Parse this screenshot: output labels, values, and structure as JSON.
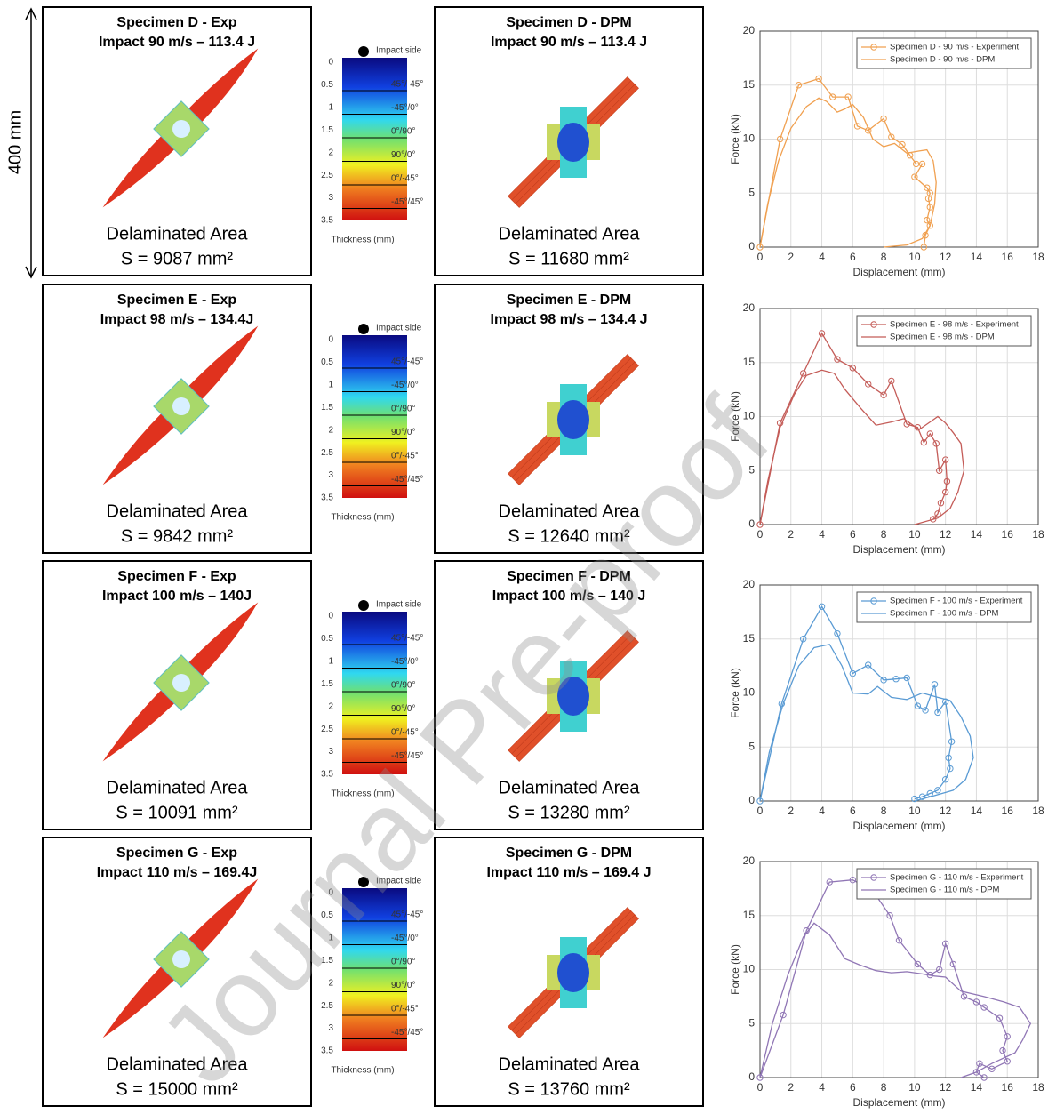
{
  "scale_label": "400 mm",
  "watermark": "Journal Pre-proof",
  "colorbar": {
    "impact_label": "Impact side",
    "ticks": [
      "0",
      "0.5",
      "1",
      "1.5",
      "2",
      "2.5",
      "3",
      "3.5"
    ],
    "plies": [
      "45°/-45°",
      "-45°/0°",
      "0°/90°",
      "90°/0°",
      "0°/-45°",
      "-45°/45°"
    ],
    "label": "Thickness (mm)"
  },
  "panels": [
    {
      "exp": {
        "title": "Specimen D - Exp",
        "subtitle": "Impact 90 m/s – 113.4 J",
        "area_label": "Delaminated Area",
        "area": "S = 9087 mm²"
      },
      "dpm": {
        "title": "Specimen D - DPM",
        "subtitle": "Impact 90 m/s – 113.4 J",
        "area_label": "Delaminated Area",
        "area": "S = 11680 mm²"
      }
    },
    {
      "exp": {
        "title": "Specimen E - Exp",
        "subtitle": "Impact 98 m/s – 134.4J",
        "area_label": "Delaminated Area",
        "area": "S = 9842 mm²"
      },
      "dpm": {
        "title": "Specimen E - DPM",
        "subtitle": "Impact 98 m/s – 134.4 J",
        "area_label": "Delaminated Area",
        "area": "S = 12640 mm²"
      }
    },
    {
      "exp": {
        "title": "Specimen F - Exp",
        "subtitle": "Impact 100 m/s – 140J",
        "area_label": "Delaminated Area",
        "area": "S = 10091 mm²"
      },
      "dpm": {
        "title": "Specimen F - DPM",
        "subtitle": "Impact 100 m/s – 140 J",
        "area_label": "Delaminated Area",
        "area": "S = 13280 mm²"
      }
    },
    {
      "exp": {
        "title": "Specimen G - Exp",
        "subtitle": "Impact 110 m/s – 169.4J",
        "area_label": "Delaminated Area",
        "area": "S = 15000 mm²"
      },
      "dpm": {
        "title": "Specimen G - DPM",
        "subtitle": "Impact 110 m/s – 169.4 J",
        "area_label": "Delaminated Area",
        "area": "S = 13760 mm²"
      }
    }
  ],
  "chart_data": [
    {
      "type": "line",
      "x_label": "Displacement (mm)",
      "y_label": "Force (kN)",
      "xlim": [
        0,
        18
      ],
      "xticks": [
        0,
        2,
        4,
        6,
        8,
        10,
        12,
        14,
        16,
        18
      ],
      "ylim": [
        0,
        20
      ],
      "yticks": [
        0,
        5,
        10,
        15,
        20
      ],
      "grid": true,
      "legend": "upper right",
      "series": [
        {
          "name": "Specimen D - 90 m/s - Experiment",
          "color": "#f0a050",
          "marker": "o",
          "x": [
            0,
            1.3,
            2.5,
            3.8,
            4.7,
            5.7,
            6.3,
            7,
            8,
            8.5,
            9.2,
            9.7,
            10.1,
            10.5,
            10,
            10.8,
            11,
            10.9,
            11,
            10.8,
            11,
            10.7,
            10.6
          ],
          "values": [
            0,
            10,
            15,
            15.6,
            13.9,
            13.9,
            11.2,
            10.8,
            11.9,
            10.2,
            9.5,
            8.5,
            7.7,
            7.7,
            6.5,
            5.5,
            5,
            4.5,
            3.7,
            2.5,
            2,
            1.1,
            0
          ]
        },
        {
          "name": "Specimen D - 90 m/s - DPM",
          "color": "#f0a050",
          "x": [
            0,
            0.5,
            1.2,
            2,
            3,
            3.8,
            4.3,
            5,
            5.5,
            6,
            6.7,
            7.3,
            8,
            8.7,
            9.5,
            10.3,
            10.8,
            11.2,
            11.4,
            11.3,
            11,
            10.5,
            9.5,
            8
          ],
          "values": [
            0,
            4,
            8,
            11,
            13,
            13.8,
            13.5,
            12.5,
            12.8,
            13.2,
            12,
            10,
            9.3,
            9.6,
            8.7,
            8.9,
            9,
            8,
            6,
            4,
            2,
            0.8,
            0.2,
            0
          ]
        }
      ]
    },
    {
      "type": "line",
      "x_label": "Displacement (mm)",
      "y_label": "Force (kN)",
      "xlim": [
        0,
        18
      ],
      "xticks": [
        0,
        2,
        4,
        6,
        8,
        10,
        12,
        14,
        16,
        18
      ],
      "ylim": [
        0,
        20
      ],
      "yticks": [
        0,
        5,
        10,
        15,
        20
      ],
      "grid": true,
      "legend": "upper right",
      "series": [
        {
          "name": "Specimen E - 98 m/s - Experiment",
          "color": "#c45c58",
          "marker": "o",
          "x": [
            0,
            1.3,
            2.8,
            4,
            5,
            6,
            7,
            8,
            8.5,
            9.5,
            10.2,
            10.6,
            11,
            11.4,
            11.6,
            12,
            12.1,
            12,
            11.7,
            11.5,
            11.2
          ],
          "values": [
            0,
            9.4,
            14,
            17.7,
            15.3,
            14.5,
            13,
            12,
            13.3,
            9.3,
            9,
            7.6,
            8.4,
            7.5,
            5,
            6,
            4,
            3,
            2,
            1,
            0.5
          ]
        },
        {
          "name": "Specimen E - 98 m/s - DPM",
          "color": "#c45c58",
          "x": [
            0,
            0.5,
            1.3,
            2.2,
            3,
            4,
            4.8,
            5.5,
            6.5,
            7.5,
            8.5,
            9.3,
            10.3,
            11,
            11.5,
            12,
            12.5,
            13,
            13.2,
            12.8,
            12.3,
            11.5,
            10
          ],
          "values": [
            0,
            4,
            9,
            12,
            13.8,
            14.3,
            14,
            12.5,
            10.8,
            9.2,
            9.5,
            9.8,
            8.8,
            9.5,
            10,
            9.4,
            8.5,
            7.5,
            5,
            3,
            1.5,
            0.6,
            0
          ]
        }
      ]
    },
    {
      "type": "line",
      "x_label": "Displacement (mm)",
      "y_label": "Force (kN)",
      "xlim": [
        0,
        18
      ],
      "xticks": [
        0,
        2,
        4,
        6,
        8,
        10,
        12,
        14,
        16,
        18
      ],
      "ylim": [
        0,
        20
      ],
      "yticks": [
        0,
        5,
        10,
        15,
        20
      ],
      "grid": true,
      "legend": "upper right",
      "series": [
        {
          "name": "Specimen F - 100 m/s - Experiment",
          "color": "#5a9bd4",
          "marker": "o",
          "x": [
            0,
            1.4,
            2.8,
            4,
            5,
            6,
            7,
            8,
            8.8,
            9.5,
            10.2,
            10.7,
            11.3,
            11.5,
            12,
            12.4,
            12.2,
            12.3,
            12,
            11.5,
            11,
            10.5,
            10
          ],
          "values": [
            0,
            9,
            15,
            18,
            15.5,
            11.8,
            12.6,
            11.2,
            11.3,
            11.4,
            8.8,
            8.4,
            10.8,
            8.2,
            9.2,
            5.5,
            4,
            3,
            2,
            1,
            0.7,
            0.4,
            0.2
          ]
        },
        {
          "name": "Specimen F - 100 m/s - DPM",
          "color": "#5a9bd4",
          "x": [
            0,
            0.6,
            1.5,
            2.5,
            3.5,
            4.5,
            5.3,
            6,
            7,
            7.6,
            8.5,
            9.5,
            10.5,
            11.5,
            12.3,
            13,
            13.6,
            13.8,
            13.3,
            12.5,
            11.3,
            10
          ],
          "values": [
            0,
            4.5,
            9,
            12.5,
            14.2,
            14.5,
            12.5,
            10,
            9.9,
            10.6,
            9.6,
            9.4,
            10,
            9.6,
            9.3,
            7.8,
            6,
            4,
            2,
            1,
            0.5,
            0
          ]
        }
      ]
    },
    {
      "type": "line",
      "x_label": "Displacement (mm)",
      "y_label": "Force (kN)",
      "xlim": [
        0,
        18
      ],
      "xticks": [
        0,
        2,
        4,
        6,
        8,
        10,
        12,
        14,
        16,
        18
      ],
      "ylim": [
        0,
        20
      ],
      "yticks": [
        0,
        5,
        10,
        15,
        20
      ],
      "grid": true,
      "legend": "upper right",
      "series": [
        {
          "name": "Specimen G - 110 m/s - Experiment",
          "color": "#9076b5",
          "marker": "o",
          "x": [
            0,
            1.5,
            3,
            4.5,
            6,
            7.3,
            8.4,
            9,
            10.2,
            11,
            11.6,
            12,
            12.5,
            13.2,
            14,
            14.5,
            15.5,
            16,
            15.7,
            16,
            15,
            14.2,
            14,
            14.5
          ],
          "values": [
            0,
            5.8,
            13.6,
            18.1,
            18.3,
            17.3,
            15,
            12.7,
            10.5,
            9.5,
            10,
            12.4,
            10.5,
            7.5,
            7,
            6.5,
            5.5,
            3.8,
            2.5,
            1.5,
            0.8,
            1.3,
            0.5,
            0
          ]
        },
        {
          "name": "Specimen G - 110 m/s - DPM",
          "color": "#9076b5",
          "x": [
            0,
            0.8,
            1.8,
            2.8,
            3.5,
            4.5,
            5.5,
            6.5,
            7.5,
            8.5,
            9.5,
            10.5,
            11.3,
            12,
            13,
            14.5,
            15.8,
            16.8,
            17.5,
            17,
            16.5,
            15,
            14,
            13
          ],
          "values": [
            0,
            5,
            9.5,
            13,
            14.3,
            13.2,
            11,
            10.4,
            9.9,
            9.7,
            9.8,
            9.6,
            9.4,
            9.3,
            8,
            7.5,
            7,
            6.5,
            5,
            3.5,
            2.3,
            1.3,
            0.5,
            0
          ]
        }
      ]
    }
  ]
}
